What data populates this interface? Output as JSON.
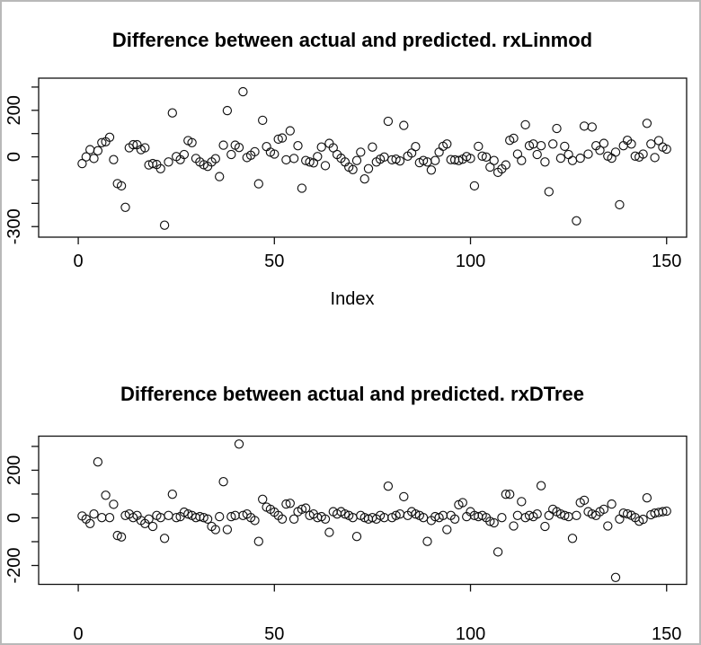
{
  "figure": {
    "background": "#ffffff",
    "border_color": "#b9b9b9",
    "ink_color": "#111111"
  },
  "chart_data": [
    {
      "type": "scatter",
      "title": "Difference between actual and predicted. rxLinmod",
      "xlabel": "Index",
      "ylabel": "",
      "marker": "open-circle",
      "grid": false,
      "legend": "none",
      "x_start_index": 1,
      "xlim": [
        -10.1,
        155.1
      ],
      "ylim": [
        -345.4,
        338.3
      ],
      "x_ticks": [
        0,
        50,
        100,
        150
      ],
      "y_ticks": [
        300,
        200,
        100,
        0,
        -100,
        -200,
        -300
      ],
      "y_tick_labels_shown": [
        200,
        0,
        -300
      ],
      "values": [
        -29,
        0,
        31,
        -7,
        26,
        61,
        65,
        84,
        -12,
        -115,
        -125,
        -217,
        39,
        52,
        52,
        31,
        39,
        -35,
        -29,
        -33,
        -51,
        -294,
        -22,
        189,
        1,
        -12,
        10,
        70,
        61,
        -7,
        -22,
        -34,
        -41,
        -22,
        -8,
        -85,
        50,
        199,
        10,
        50,
        40,
        280,
        -3,
        7,
        22,
        -116,
        157,
        44,
        20,
        12,
        76,
        81,
        -13,
        112,
        -7,
        48,
        -135,
        -16,
        -22,
        -26,
        1,
        42,
        -38,
        58,
        39,
        10,
        -6,
        -22,
        -44,
        -55,
        -16,
        20,
        -95,
        -51,
        42,
        -22,
        -10,
        -1,
        153,
        -13,
        -10,
        -18,
        135,
        3,
        16,
        44,
        -25,
        -16,
        -22,
        -57,
        -16,
        20,
        45,
        55,
        -12,
        -13,
        -16,
        -10,
        1,
        -7,
        -125,
        45,
        3,
        -1,
        -44,
        -16,
        -67,
        -52,
        -35,
        71,
        80,
        12,
        -16,
        138,
        48,
        55,
        10,
        48,
        -22,
        -150,
        55,
        122,
        -6,
        45,
        10,
        -16,
        -275,
        -6,
        132,
        12,
        128,
        48,
        28,
        58,
        3,
        -6,
        20,
        -206,
        48,
        71,
        55,
        3,
        -1,
        12,
        144,
        55,
        -3,
        70,
        42,
        33
      ]
    },
    {
      "type": "scatter",
      "title": "Difference between actual and predicted. rxDTree",
      "xlabel": "",
      "ylabel": "",
      "marker": "open-circle",
      "grid": false,
      "legend": "none",
      "x_start_index": 1,
      "xlim": [
        -10.1,
        155.1
      ],
      "ylim": [
        -279.2,
        343.1
      ],
      "x_ticks": [
        0,
        50,
        100,
        150
      ],
      "y_ticks": [
        300,
        200,
        100,
        0,
        -100,
        -200
      ],
      "y_tick_labels_shown": [
        200,
        0,
        -200
      ],
      "values": [
        8,
        -5,
        -24,
        16,
        235,
        1,
        95,
        1,
        57,
        -74,
        -80,
        10,
        16,
        1,
        10,
        -11,
        -24,
        -5,
        -36,
        10,
        1,
        -86,
        10,
        99,
        1,
        5,
        24,
        16,
        10,
        1,
        5,
        1,
        -5,
        -36,
        -49,
        5,
        152,
        -49,
        5,
        10,
        310,
        10,
        16,
        1,
        -11,
        -99,
        78,
        45,
        36,
        24,
        10,
        -5,
        58,
        61,
        -5,
        26,
        36,
        41,
        10,
        16,
        1,
        5,
        -5,
        -61,
        26,
        16,
        26,
        16,
        10,
        1,
        -78,
        10,
        1,
        -5,
        1,
        -5,
        10,
        1,
        133,
        1,
        10,
        16,
        89,
        10,
        26,
        16,
        10,
        1,
        -99,
        -11,
        5,
        1,
        10,
        -49,
        10,
        -5,
        55,
        64,
        5,
        26,
        10,
        5,
        10,
        1,
        -15,
        -21,
        -143,
        1,
        99,
        99,
        -34,
        10,
        68,
        1,
        10,
        5,
        16,
        135,
        -36,
        10,
        36,
        26,
        16,
        10,
        5,
        -86,
        10,
        64,
        74,
        26,
        16,
        10,
        26,
        36,
        -34,
        58,
        -250,
        -5,
        20,
        17,
        11,
        1,
        -14,
        -6,
        84,
        13,
        20,
        23,
        26,
        28
      ]
    }
  ]
}
